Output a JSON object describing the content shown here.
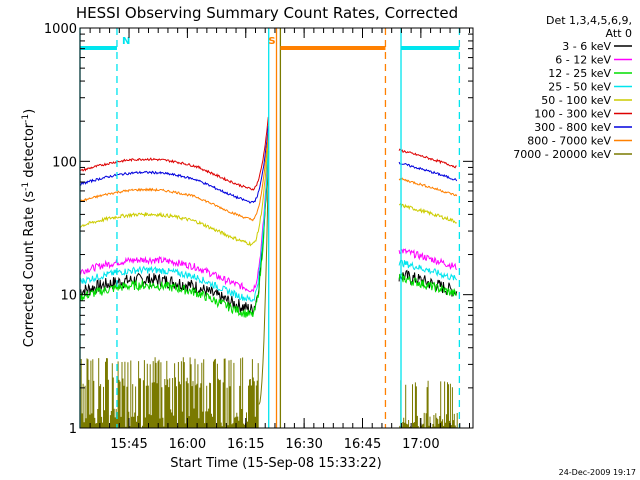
{
  "chart_data": {
    "type": "line",
    "title": "HESSI Observing Summary Count Rates, Corrected",
    "xlabel": "Start Time (15-Sep-08 15:33:22)",
    "ylabel_main": "Corrected Count Rate (s",
    "ylabel_sup1": "-1",
    "ylabel_mid": " detector",
    "ylabel_sup2": "-1",
    "ylabel_end": ")",
    "y_scale": "log",
    "ylim": [
      1,
      1000
    ],
    "y_ticks": [
      {
        "value": 1,
        "label": "1"
      },
      {
        "value": 10,
        "label": "10"
      },
      {
        "value": 100,
        "label": "100"
      },
      {
        "value": 1000,
        "label": "1000"
      }
    ],
    "x_ticks": [
      {
        "value": 12.6,
        "label": "15:45"
      },
      {
        "value": 27.6,
        "label": "16:00"
      },
      {
        "value": 42.6,
        "label": "16:15"
      },
      {
        "value": 57.6,
        "label": "16:30"
      },
      {
        "value": 72.6,
        "label": "16:45"
      },
      {
        "value": 87.6,
        "label": "17:00"
      }
    ],
    "xlim": [
      0,
      101
    ],
    "legend_header": [
      "Det 1,3,4,5,6,9,",
      "Att 0"
    ],
    "legend_placement": "right",
    "flags": [
      {
        "label": "N",
        "color": "#00e5ee",
        "start": 0,
        "end": 9.5
      },
      {
        "label": "S",
        "color": "#ff8000",
        "start": 51.5,
        "end": 78.5
      },
      {
        "label": "",
        "color": "#00e5ee",
        "start": 82.5,
        "end": 97.5
      }
    ],
    "vlines": [
      {
        "x": 0,
        "color": "#00e5ee",
        "style": "solid"
      },
      {
        "x": 9.5,
        "color": "#00e5ee",
        "style": "dashed"
      },
      {
        "x": 48.5,
        "color": "#00e5ee",
        "style": "solid"
      },
      {
        "x": 50.5,
        "color": "#ff8000",
        "style": "solid"
      },
      {
        "x": 51.5,
        "color": "#7a7a00",
        "style": "solid"
      },
      {
        "x": 78.5,
        "color": "#ff8000",
        "style": "dashed"
      },
      {
        "x": 82.5,
        "color": "#00e5ee",
        "style": "solid"
      },
      {
        "x": 97.5,
        "color": "#00e5ee",
        "style": "dashed"
      }
    ],
    "series": [
      {
        "name": "3 - 6 keV",
        "color": "#000000",
        "base": 11,
        "rise": 1.2,
        "peak": 150,
        "post": 10.5,
        "noise": 0.12
      },
      {
        "name": "6 - 12 keV",
        "color": "#ff00ff",
        "base": 15.5,
        "rise": 1.2,
        "peak": 155,
        "post": 16,
        "noise": 0.06
      },
      {
        "name": "12 - 25 keV",
        "color": "#00dd00",
        "base": 10,
        "rise": 1.2,
        "peak": 145,
        "post": 10,
        "noise": 0.08
      },
      {
        "name": "25 - 50 keV",
        "color": "#00e5ee",
        "base": 13,
        "rise": 1.2,
        "peak": 150,
        "post": 13,
        "noise": 0.06
      },
      {
        "name": "50 - 100 keV",
        "color": "#cccc00",
        "base": 34,
        "rise": 1.1,
        "peak": 160,
        "post": 35,
        "noise": 0.03
      },
      {
        "name": "100 - 300 keV",
        "color": "#dd0000",
        "base": 88,
        "rise": 1.1,
        "peak": 230,
        "post": 90,
        "noise": 0.02
      },
      {
        "name": "300 - 800 keV",
        "color": "#0000dd",
        "base": 70,
        "rise": 1.1,
        "peak": 200,
        "post": 72,
        "noise": 0.02
      },
      {
        "name": "800 - 7000 keV",
        "color": "#ff8000",
        "base": 52,
        "rise": 1.1,
        "peak": 180,
        "post": 55,
        "noise": 0.02
      },
      {
        "name": "7000 - 20000 keV",
        "color": "#7a7a00",
        "base": 1.5,
        "rise": 1.0,
        "peak": 120,
        "post": 1.3,
        "noise": 0.0
      }
    ],
    "segments": [
      {
        "start": 0,
        "end": 48.5
      },
      {
        "start": 82.0,
        "end": 97.0
      }
    ]
  },
  "timestamp": "24-Dec-2009 19:17"
}
